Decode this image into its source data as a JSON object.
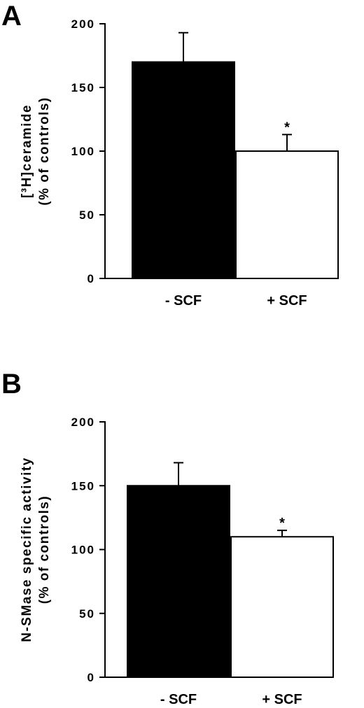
{
  "chart_data": [
    {
      "panel": "A",
      "type": "bar",
      "categories": [
        "- SCF",
        "+ SCF"
      ],
      "values": [
        170,
        100
      ],
      "errors": [
        23,
        13
      ],
      "significance": [
        "",
        "*"
      ],
      "bar_colors": [
        "#000000",
        "#ffffff"
      ],
      "ylabel_lines": [
        "[³H]ceramide",
        "(% of controls)"
      ],
      "ylim": [
        0,
        200
      ],
      "yticks": [
        0,
        50,
        100,
        150,
        200
      ],
      "ytick_labels": [
        "0",
        "50",
        "100",
        "150",
        "200"
      ],
      "grid": false,
      "legend": "none"
    },
    {
      "panel": "B",
      "type": "bar",
      "categories": [
        "- SCF",
        "+ SCF"
      ],
      "values": [
        150,
        110
      ],
      "errors": [
        18,
        5
      ],
      "significance": [
        "",
        "*"
      ],
      "bar_colors": [
        "#000000",
        "#ffffff"
      ],
      "ylabel_lines": [
        "N-SMase specific activity",
        "(% of controls)"
      ],
      "ylim": [
        0,
        200
      ],
      "yticks": [
        0,
        50,
        100,
        150,
        200
      ],
      "ytick_labels": [
        "0",
        "50",
        "100",
        "150",
        "200"
      ],
      "grid": false,
      "legend": "none"
    }
  ]
}
